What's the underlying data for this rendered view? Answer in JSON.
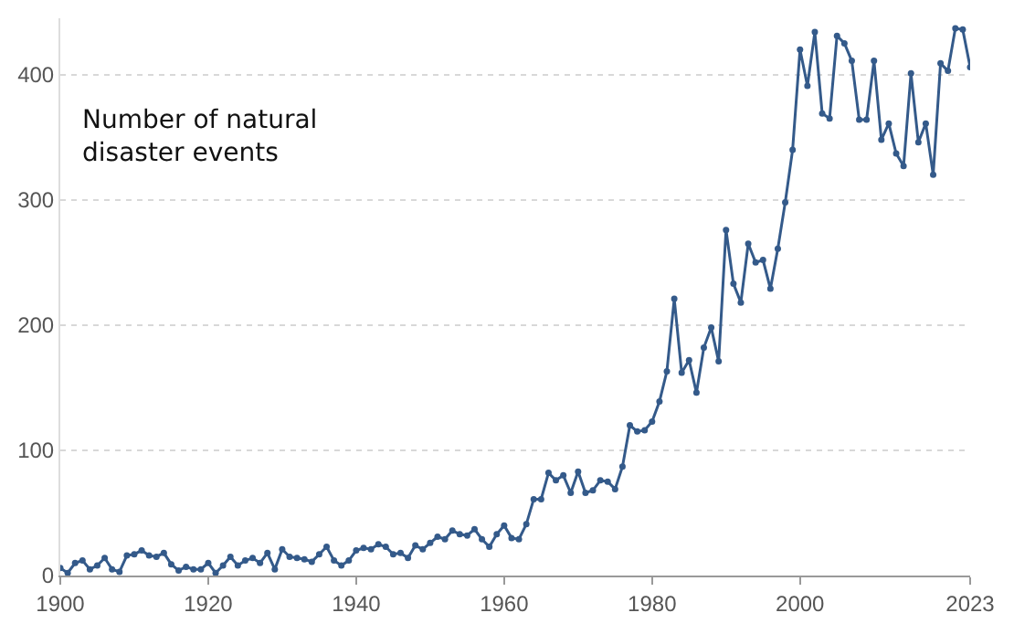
{
  "chart_data": {
    "type": "line",
    "annotations": [
      "Number of natural\ndisaster events"
    ],
    "x": [
      1900,
      1901,
      1902,
      1903,
      1904,
      1905,
      1906,
      1907,
      1908,
      1909,
      1910,
      1911,
      1912,
      1913,
      1914,
      1915,
      1916,
      1917,
      1918,
      1919,
      1920,
      1921,
      1922,
      1923,
      1924,
      1925,
      1926,
      1927,
      1928,
      1929,
      1930,
      1931,
      1932,
      1933,
      1934,
      1935,
      1936,
      1937,
      1938,
      1939,
      1940,
      1941,
      1942,
      1943,
      1944,
      1945,
      1946,
      1947,
      1948,
      1949,
      1950,
      1951,
      1952,
      1953,
      1954,
      1955,
      1956,
      1957,
      1958,
      1959,
      1960,
      1961,
      1962,
      1963,
      1964,
      1965,
      1966,
      1967,
      1968,
      1969,
      1970,
      1971,
      1972,
      1973,
      1974,
      1975,
      1976,
      1977,
      1978,
      1979,
      1980,
      1981,
      1982,
      1983,
      1984,
      1985,
      1986,
      1987,
      1988,
      1989,
      1990,
      1991,
      1992,
      1993,
      1994,
      1995,
      1996,
      1997,
      1998,
      1999,
      2000,
      2001,
      2002,
      2003,
      2004,
      2005,
      2006,
      2007,
      2008,
      2009,
      2010,
      2011,
      2012,
      2013,
      2014,
      2015,
      2016,
      2017,
      2018,
      2019,
      2020,
      2021,
      2022,
      2023
    ],
    "series": [
      {
        "color": "#345a8a",
        "values": [
          6,
          2,
          10,
          12,
          5,
          8,
          14,
          5,
          3,
          16,
          17,
          20,
          16,
          15,
          18,
          9,
          4,
          7,
          5,
          5,
          10,
          2,
          8,
          15,
          8,
          12,
          14,
          10,
          18,
          5,
          21,
          15,
          14,
          13,
          11,
          17,
          23,
          12,
          8,
          12,
          20,
          22,
          21,
          25,
          23,
          17,
          18,
          14,
          24,
          21,
          26,
          31,
          29,
          36,
          33,
          32,
          37,
          29,
          23,
          33,
          40,
          30,
          29,
          41,
          61,
          61,
          82,
          76,
          80,
          66,
          83,
          66,
          68,
          76,
          75,
          69,
          87,
          120,
          115,
          116,
          123,
          139,
          163,
          221,
          162,
          172,
          146,
          182,
          198,
          171,
          276,
          233,
          218,
          265,
          250,
          252,
          229,
          261,
          298,
          340,
          420,
          391,
          434,
          369,
          365,
          431,
          425,
          411,
          364,
          364,
          411,
          348,
          361,
          337,
          327,
          401,
          346,
          361,
          320,
          409,
          403,
          437,
          436,
          406
        ]
      }
    ],
    "xlim": [
      1900,
      2023
    ],
    "xticks": [
      1900,
      1920,
      1940,
      1960,
      1980,
      2000,
      2023
    ],
    "ylim": [
      0,
      445
    ],
    "yticks": [
      0,
      100,
      200,
      300,
      400
    ],
    "grid": "y",
    "marker": "circle",
    "line_style": "solid"
  }
}
